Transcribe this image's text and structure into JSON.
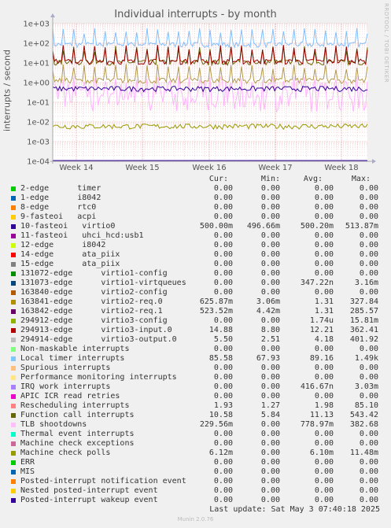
{
  "title": "Individual interrupts - by month",
  "side_label": "RRDTOOL / TOBI OETIKER",
  "ylabel": "interrupts / second",
  "footer": "Munin 2.0.76",
  "last_update": "Last update: Sat May  3 07:40:18 2025",
  "headers": {
    "cur": "Cur:",
    "min": "Min:",
    "avg": "Avg:",
    "max": "Max:"
  },
  "chart_data": {
    "type": "line",
    "yscale": "log",
    "ylim": [
      0.0001,
      1000
    ],
    "ytick_labels": [
      "1e+03",
      "1e+02",
      "1e+01",
      "1e+00",
      "1e-01",
      "1e-02",
      "1e-03",
      "1e-04"
    ],
    "xtick_labels": [
      "Week 14",
      "Week 15",
      "Week 16",
      "Week 17",
      "Week 18"
    ],
    "grid": true,
    "series": [
      {
        "name": "Local timer interrupts",
        "color": "#80bfff",
        "level": 88,
        "spike": 1490
      },
      {
        "name": "Function call interrupts",
        "color": "#666600",
        "level": 11,
        "spike": 543
      },
      {
        "name": "TLB shootdowns",
        "color": "#ffb3ff",
        "level": 0.3,
        "spike": 383
      },
      {
        "name": "virtio3-input.0",
        "color": "#990000",
        "level": 12,
        "spike": 362
      },
      {
        "name": "virtio2-req.0",
        "color": "#b3994d",
        "level": 1.3,
        "spike": 328
      },
      {
        "name": "10-fasteoi virtio0",
        "color": "#330099",
        "level": 0.5,
        "spike": 0.51
      },
      {
        "name": "Machine check polls",
        "color": "#999900",
        "level": 0.0061,
        "spike": 0.0115
      }
    ]
  },
  "legend": [
    {
      "label": "2-edge      timer",
      "color": "#00cc00",
      "cur": "0.00",
      "min": "0.00",
      "avg": "0.00",
      "max": "0.00"
    },
    {
      "label": "1-edge      i8042",
      "color": "#0066b3",
      "cur": "0.00",
      "min": "0.00",
      "avg": "0.00",
      "max": "0.00"
    },
    {
      "label": "8-edge      rtc0",
      "color": "#ff8000",
      "cur": "0.00",
      "min": "0.00",
      "avg": "0.00",
      "max": "0.00"
    },
    {
      "label": "9-fasteoi   acpi",
      "color": "#ffcc00",
      "cur": "0.00",
      "min": "0.00",
      "avg": "0.00",
      "max": "0.00"
    },
    {
      "label": "10-fasteoi   virtio0",
      "color": "#330099",
      "cur": "500.00m",
      "min": "496.66m",
      "avg": "500.20m",
      "max": "513.87m"
    },
    {
      "label": "11-fasteoi   uhci_hcd:usb1",
      "color": "#990099",
      "cur": "0.00",
      "min": "0.00",
      "avg": "0.00",
      "max": "0.00"
    },
    {
      "label": "12-edge      i8042",
      "color": "#ccff00",
      "cur": "0.00",
      "min": "0.00",
      "avg": "0.00",
      "max": "0.00"
    },
    {
      "label": "14-edge      ata_piix",
      "color": "#ff0000",
      "cur": "0.00",
      "min": "0.00",
      "avg": "0.00",
      "max": "0.00"
    },
    {
      "label": "15-edge      ata_piix",
      "color": "#808080",
      "cur": "0.00",
      "min": "0.00",
      "avg": "0.00",
      "max": "0.00"
    },
    {
      "label": "131072-edge      virtio1-config",
      "color": "#008f00",
      "cur": "0.00",
      "min": "0.00",
      "avg": "0.00",
      "max": "0.00"
    },
    {
      "label": "131073-edge      virtio1-virtqueues",
      "color": "#00487d",
      "cur": "0.00",
      "min": "0.00",
      "avg": "347.22n",
      "max": "3.16m"
    },
    {
      "label": "163840-edge      virtio2-config",
      "color": "#b35a00",
      "cur": "0.00",
      "min": "0.00",
      "avg": "0.00",
      "max": "0.00"
    },
    {
      "label": "163841-edge      virtio2-req.0",
      "color": "#b38f00",
      "cur": "625.87m",
      "min": "3.06m",
      "avg": "1.31",
      "max": "327.84"
    },
    {
      "label": "163842-edge      virtio2-req.1",
      "color": "#6b006b",
      "cur": "523.52m",
      "min": "4.42m",
      "avg": "1.31",
      "max": "285.57"
    },
    {
      "label": "294912-edge      virtio3-config",
      "color": "#8fb300",
      "cur": "0.00",
      "min": "0.00",
      "avg": "1.74u",
      "max": "15.81m"
    },
    {
      "label": "294913-edge      virtio3-input.0",
      "color": "#b30000",
      "cur": "14.88",
      "min": "8.80",
      "avg": "12.21",
      "max": "362.41"
    },
    {
      "label": "294914-edge      virtio3-output.0",
      "color": "#bebebe",
      "cur": "5.50",
      "min": "2.51",
      "avg": "4.18",
      "max": "401.92"
    },
    {
      "label": "Non-maskable interrupts",
      "color": "#80ff80",
      "cur": "0.00",
      "min": "0.00",
      "avg": "0.00",
      "max": "0.00"
    },
    {
      "label": "Local timer interrupts",
      "color": "#80c9ff",
      "cur": "85.58",
      "min": "67.93",
      "avg": "89.16",
      "max": "1.49k"
    },
    {
      "label": "Spurious interrupts",
      "color": "#ffc080",
      "cur": "0.00",
      "min": "0.00",
      "avg": "0.00",
      "max": "0.00"
    },
    {
      "label": "Performance monitoring interrupts",
      "color": "#ffe680",
      "cur": "0.00",
      "min": "0.00",
      "avg": "0.00",
      "max": "0.00"
    },
    {
      "label": "IRQ work interrupts",
      "color": "#aa80ff",
      "cur": "0.00",
      "min": "0.00",
      "avg": "416.67n",
      "max": "3.03m"
    },
    {
      "label": "APIC ICR read retries",
      "color": "#ee00cc",
      "cur": "0.00",
      "min": "0.00",
      "avg": "0.00",
      "max": "0.00"
    },
    {
      "label": "Rescheduling interrupts",
      "color": "#ff8080",
      "cur": "1.93",
      "min": "1.27",
      "avg": "1.98",
      "max": "85.10"
    },
    {
      "label": "Function call interrupts",
      "color": "#666600",
      "cur": "10.58",
      "min": "5.84",
      "avg": "11.13",
      "max": "543.42"
    },
    {
      "label": "TLB shootdowns",
      "color": "#ffbfff",
      "cur": "229.56m",
      "min": "0.00",
      "avg": "778.97m",
      "max": "382.68"
    },
    {
      "label": "Thermal event interrupts",
      "color": "#00ffcc",
      "cur": "0.00",
      "min": "0.00",
      "avg": "0.00",
      "max": "0.00"
    },
    {
      "label": "Machine check exceptions",
      "color": "#cc6699",
      "cur": "0.00",
      "min": "0.00",
      "avg": "0.00",
      "max": "0.00"
    },
    {
      "label": "Machine check polls",
      "color": "#999900",
      "cur": "6.12m",
      "min": "0.00",
      "avg": "6.10m",
      "max": "11.48m"
    },
    {
      "label": "ERR",
      "color": "#00cc00",
      "cur": "0.00",
      "min": "0.00",
      "avg": "0.00",
      "max": "0.00"
    },
    {
      "label": "MIS",
      "color": "#0066b3",
      "cur": "0.00",
      "min": "0.00",
      "avg": "0.00",
      "max": "0.00"
    },
    {
      "label": "Posted-interrupt notification event",
      "color": "#ff8000",
      "cur": "0.00",
      "min": "0.00",
      "avg": "0.00",
      "max": "0.00"
    },
    {
      "label": "Nested posted-interrupt event",
      "color": "#ffcc00",
      "cur": "0.00",
      "min": "0.00",
      "avg": "0.00",
      "max": "0.00"
    },
    {
      "label": "Posted-interrupt wakeup event",
      "color": "#330099",
      "cur": "0.00",
      "min": "0.00",
      "avg": "0.00",
      "max": "0.00"
    }
  ]
}
